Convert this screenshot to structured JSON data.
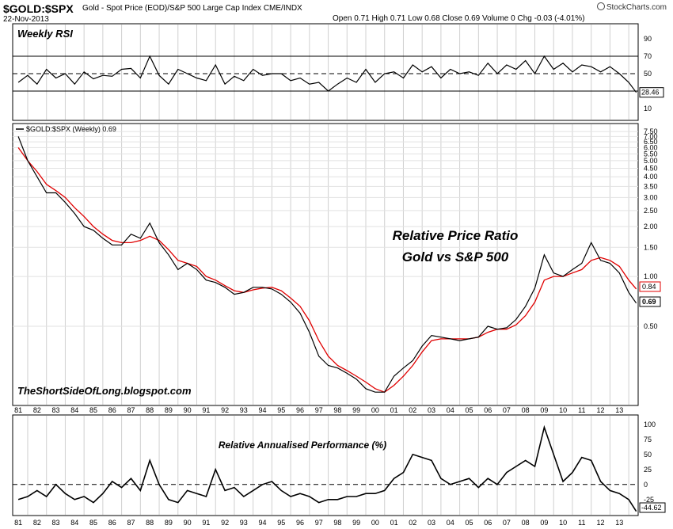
{
  "header": {
    "symbol": "$GOLD:$SPX",
    "description": "Gold - Spot Price (EOD)/S&P 500 Large Cap Index  CME/INDX",
    "date": "22-Nov-2013",
    "ohlc": "Open 0.71  High 0.71  Low 0.68  Close 0.69  Volume 0  Chg -0.03 (-4.01%)",
    "brand": "StockCharts.com"
  },
  "chart_data": [
    {
      "type": "line",
      "panel": "rsi",
      "title": "Weekly RSI",
      "y_ticks": [
        90,
        70,
        50,
        30,
        10
      ],
      "ylim": [
        0,
        100
      ],
      "reference_lines": [
        70,
        50,
        30
      ],
      "last_value_label": "28.46",
      "x": [
        1981,
        1981.5,
        1982,
        1982.5,
        1983,
        1983.5,
        1984,
        1984.5,
        1985,
        1985.5,
        1986,
        1986.5,
        1987,
        1987.5,
        1988,
        1988.5,
        1989,
        1989.5,
        1990,
        1990.5,
        1991,
        1991.5,
        1992,
        1992.5,
        1993,
        1993.5,
        1994,
        1994.5,
        1995,
        1995.5,
        1996,
        1996.5,
        1997,
        1997.5,
        1998,
        1998.5,
        1999,
        1999.5,
        2000,
        2000.5,
        2001,
        2001.5,
        2002,
        2002.5,
        2003,
        2003.5,
        2004,
        2004.5,
        2005,
        2005.5,
        2006,
        2006.5,
        2007,
        2007.5,
        2008,
        2008.5,
        2009,
        2009.5,
        2010,
        2010.5,
        2011,
        2011.5,
        2012,
        2012.5,
        2013,
        2013.5,
        2013.9
      ],
      "y": [
        40,
        48,
        38,
        55,
        45,
        50,
        38,
        52,
        44,
        48,
        47,
        55,
        56,
        45,
        70,
        48,
        38,
        55,
        50,
        45,
        42,
        60,
        38,
        47,
        42,
        55,
        48,
        50,
        50,
        42,
        45,
        38,
        40,
        30,
        38,
        45,
        40,
        55,
        40,
        50,
        52,
        45,
        60,
        52,
        58,
        45,
        55,
        50,
        52,
        48,
        62,
        50,
        60,
        55,
        65,
        50,
        70,
        55,
        62,
        52,
        60,
        58,
        52,
        58,
        50,
        40,
        28.46
      ]
    },
    {
      "type": "line",
      "panel": "price",
      "series": [
        {
          "name": "$GOLD:$SPX (Weekly) 0.69",
          "values": [
            7.0,
            5.0,
            4.0,
            3.2,
            3.2,
            2.8,
            2.4,
            2.0,
            1.9,
            1.7,
            1.55,
            1.55,
            1.8,
            1.7,
            2.1,
            1.6,
            1.35,
            1.1,
            1.2,
            1.1,
            0.95,
            0.92,
            0.86,
            0.78,
            0.8,
            0.86,
            0.86,
            0.84,
            0.78,
            0.7,
            0.6,
            0.46,
            0.33,
            0.29,
            0.28,
            0.26,
            0.24,
            0.21,
            0.2,
            0.2,
            0.25,
            0.28,
            0.31,
            0.38,
            0.44,
            0.43,
            0.42,
            0.41,
            0.42,
            0.43,
            0.5,
            0.48,
            0.49,
            0.55,
            0.66,
            0.85,
            1.35,
            1.05,
            1.0,
            1.1,
            1.2,
            1.6,
            1.25,
            1.2,
            1.05,
            0.8,
            0.69
          ]
        },
        {
          "name": "",
          "values": [
            6.0,
            5.0,
            4.3,
            3.6,
            3.3,
            3.0,
            2.6,
            2.3,
            2.0,
            1.8,
            1.65,
            1.6,
            1.6,
            1.65,
            1.75,
            1.65,
            1.45,
            1.25,
            1.2,
            1.15,
            1.0,
            0.95,
            0.88,
            0.82,
            0.8,
            0.83,
            0.85,
            0.86,
            0.82,
            0.74,
            0.66,
            0.54,
            0.41,
            0.33,
            0.29,
            0.27,
            0.25,
            0.23,
            0.21,
            0.2,
            0.22,
            0.25,
            0.29,
            0.35,
            0.41,
            0.42,
            0.42,
            0.42,
            0.42,
            0.43,
            0.46,
            0.48,
            0.48,
            0.51,
            0.58,
            0.7,
            0.95,
            1.0,
            1.0,
            1.05,
            1.1,
            1.25,
            1.3,
            1.25,
            1.15,
            0.95,
            0.84
          ]
        }
      ],
      "x": [
        1981,
        1981.5,
        1982,
        1982.5,
        1983,
        1983.5,
        1984,
        1984.5,
        1985,
        1985.5,
        1986,
        1986.5,
        1987,
        1987.5,
        1988,
        1988.5,
        1989,
        1989.5,
        1990,
        1990.5,
        1991,
        1991.5,
        1992,
        1992.5,
        1993,
        1993.5,
        1994,
        1994.5,
        1995,
        1995.5,
        1996,
        1996.5,
        1997,
        1997.5,
        1998,
        1998.5,
        1999,
        1999.5,
        2000,
        2000.5,
        2001,
        2001.5,
        2002,
        2002.5,
        2003,
        2003.5,
        2004,
        2004.5,
        2005,
        2005.5,
        2006,
        2006.5,
        2007,
        2007.5,
        2008,
        2008.5,
        2009,
        2009.5,
        2010,
        2010.5,
        2011,
        2011.5,
        2012,
        2012.5,
        2013,
        2013.5,
        2013.9
      ],
      "y_scale": "log",
      "y_ticks": [
        "7.50",
        "7.00",
        "6.50",
        "6.00",
        "5.50",
        "5.00",
        "4.50",
        "4.00",
        "3.50",
        "3.00",
        "2.50",
        "2.00",
        "1.50",
        "1.00",
        "0.50"
      ],
      "ylim": [
        0.17,
        8.2
      ],
      "last_value_labels": [
        "0.84",
        "0.69"
      ],
      "annotation": [
        "Relative Price Ratio",
        "Gold vs S&P 500"
      ],
      "watermark": "TheShortSideOfLong.blogspot.com",
      "x_tick_labels": [
        "81",
        "82",
        "83",
        "84",
        "85",
        "86",
        "87",
        "88",
        "89",
        "90",
        "91",
        "92",
        "93",
        "94",
        "95",
        "96",
        "97",
        "98",
        "99",
        "00",
        "01",
        "02",
        "03",
        "04",
        "05",
        "06",
        "07",
        "08",
        "09",
        "10",
        "11",
        "12",
        "13"
      ]
    },
    {
      "type": "line",
      "panel": "performance",
      "title": "Relative Annualised Performance (%)",
      "y_ticks": [
        100,
        75,
        50,
        25,
        0,
        -25
      ],
      "ylim": [
        -45,
        105
      ],
      "reference_lines": [
        0
      ],
      "last_value_label": "-44.62",
      "x": [
        1981,
        1981.5,
        1982,
        1982.5,
        1983,
        1983.5,
        1984,
        1984.5,
        1985,
        1985.5,
        1986,
        1986.5,
        1987,
        1987.5,
        1988,
        1988.5,
        1989,
        1989.5,
        1990,
        1990.5,
        1991,
        1991.5,
        1992,
        1992.5,
        1993,
        1993.5,
        1994,
        1994.5,
        1995,
        1995.5,
        1996,
        1996.5,
        1997,
        1997.5,
        1998,
        1998.5,
        1999,
        1999.5,
        2000,
        2000.5,
        2001,
        2001.5,
        2002,
        2002.5,
        2003,
        2003.5,
        2004,
        2004.5,
        2005,
        2005.5,
        2006,
        2006.5,
        2007,
        2007.5,
        2008,
        2008.5,
        2009,
        2009.5,
        2010,
        2010.5,
        2011,
        2011.5,
        2012,
        2012.5,
        2013,
        2013.5,
        2013.9
      ],
      "y": [
        -25,
        -20,
        -10,
        -20,
        0,
        -15,
        -25,
        -20,
        -30,
        -15,
        5,
        -5,
        10,
        -10,
        40,
        0,
        -25,
        -30,
        -10,
        -15,
        -20,
        25,
        -10,
        -5,
        -20,
        -10,
        0,
        5,
        -10,
        -20,
        -15,
        -20,
        -30,
        -25,
        -25,
        -20,
        -20,
        -15,
        -15,
        -10,
        10,
        20,
        50,
        45,
        40,
        10,
        0,
        5,
        10,
        -5,
        10,
        0,
        20,
        30,
        40,
        30,
        95,
        50,
        5,
        20,
        45,
        40,
        5,
        -10,
        -15,
        -25,
        -44.62
      ]
    }
  ]
}
